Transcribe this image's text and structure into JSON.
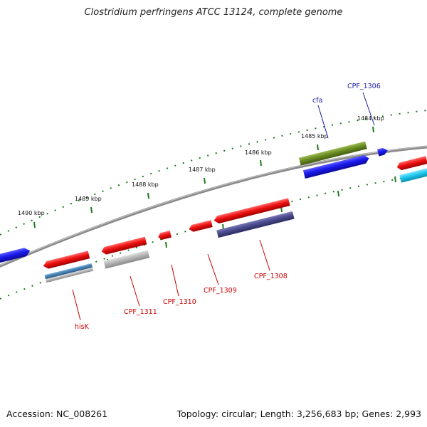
{
  "title": "Clostridium perfringens ATCC 13124, complete genome",
  "footer": {
    "accession": "Accession: NC_008261",
    "summary": "Topology: circular; Length: 3,256,683 bp; Genes: 2,993"
  },
  "scale_ticks": [
    "1484 kbp",
    "1485 kbp",
    "1486 kbp",
    "1487 kbp",
    "1488 kbp",
    "1489 kbp",
    "1490 kbp"
  ],
  "gene_labels": {
    "cpf_1306": "CPF_1306",
    "cfa": "cfa",
    "cpf_1308": "CPF_1308",
    "cpf_1309": "CPF_1309",
    "cpf_1310": "CPF_1310",
    "cpf_1311": "CPF_1311",
    "hisk": "hisK"
  },
  "colors": {
    "backbone": "#8a8a8a",
    "tick": "#1f7a1f",
    "forward_cds": "#ee1111",
    "reverse_cds": "#1a1aee",
    "olive_track": "#6b8e23",
    "slate_track": "#4b4b8f",
    "steel_track": "#4682b4",
    "gray_track": "#b0b0b0",
    "cyan_track": "#1ec8f0",
    "label_red": "#cc0000",
    "label_blue": "#1a1aa6"
  }
}
